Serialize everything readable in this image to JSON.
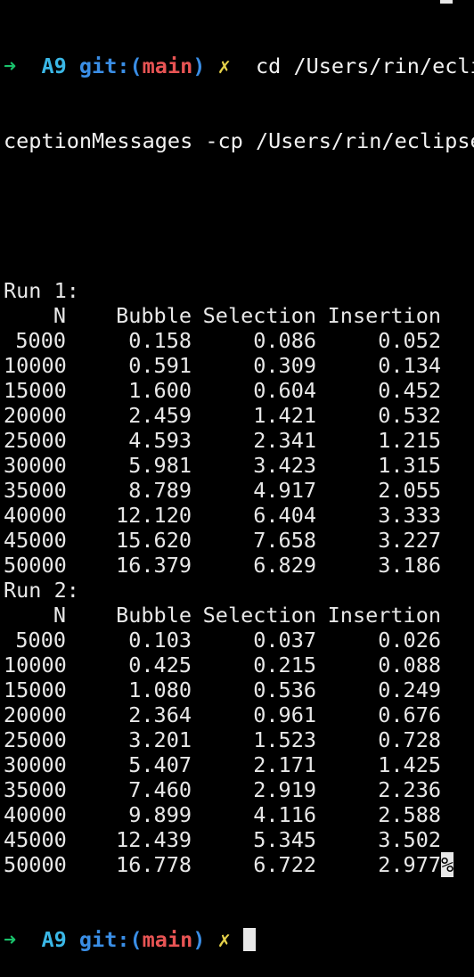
{
  "prompt": {
    "arrow": "➜",
    "dir": "A9",
    "git_prefix": "git:(",
    "branch": "main",
    "git_suffix": ")",
    "dirty": "✗"
  },
  "command": {
    "line1": "cd /Users/rin/ecli",
    "line2": "ceptionMessages -cp /Users/rin/eclipse"
  },
  "runs": [
    {
      "label": "Run 1:",
      "headers": [
        "N",
        "Bubble",
        "Selection",
        "Insertion"
      ],
      "rows": [
        [
          "5000",
          "0.158",
          "0.086",
          "0.052"
        ],
        [
          "10000",
          "0.591",
          "0.309",
          "0.134"
        ],
        [
          "15000",
          "1.600",
          "0.604",
          "0.452"
        ],
        [
          "20000",
          "2.459",
          "1.421",
          "0.532"
        ],
        [
          "25000",
          "4.593",
          "2.341",
          "1.215"
        ],
        [
          "30000",
          "5.981",
          "3.423",
          "1.315"
        ],
        [
          "35000",
          "8.789",
          "4.917",
          "2.055"
        ],
        [
          "40000",
          "12.120",
          "6.404",
          "3.333"
        ],
        [
          "45000",
          "15.620",
          "7.658",
          "3.227"
        ],
        [
          "50000",
          "16.379",
          "6.829",
          "3.186"
        ]
      ]
    },
    {
      "label": "Run 2:",
      "headers": [
        "N",
        "Bubble",
        "Selection",
        "Insertion"
      ],
      "rows": [
        [
          "5000",
          "0.103",
          "0.037",
          "0.026"
        ],
        [
          "10000",
          "0.425",
          "0.215",
          "0.088"
        ],
        [
          "15000",
          "1.080",
          "0.536",
          "0.249"
        ],
        [
          "20000",
          "2.364",
          "0.961",
          "0.676"
        ],
        [
          "25000",
          "3.201",
          "1.523",
          "0.728"
        ],
        [
          "30000",
          "5.407",
          "2.171",
          "1.425"
        ],
        [
          "35000",
          "7.460",
          "2.919",
          "2.236"
        ],
        [
          "40000",
          "9.899",
          "4.116",
          "2.588"
        ],
        [
          "45000",
          "12.439",
          "5.345",
          "3.502"
        ],
        [
          "50000",
          "16.778",
          "6.722",
          "2.977"
        ]
      ]
    }
  ],
  "eol_marker": "%",
  "colors": {
    "background": "#000000",
    "text": "#e8e8e8",
    "arrow": "#19c26b",
    "dir": "#3ab7e6",
    "git": "#3a8ee6",
    "branch": "#e85454",
    "dirty": "#e6d24a"
  }
}
